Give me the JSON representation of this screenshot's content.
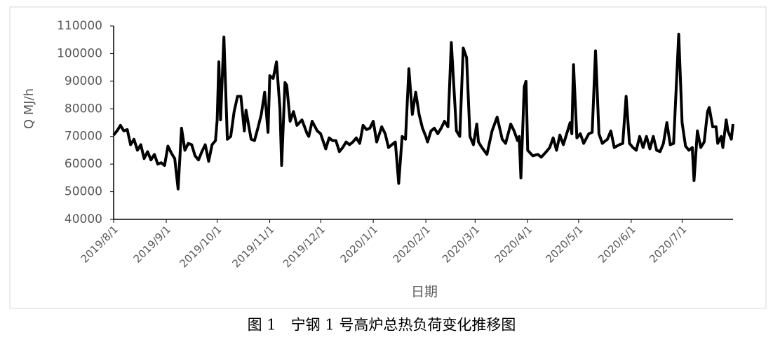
{
  "chart_data": {
    "type": "line",
    "y_label": "Q  MJ/h",
    "x_label": "日期",
    "caption": "图 1　宁钢 1 号高炉总热负荷变化推移图",
    "color": "#000000",
    "grid": false,
    "ylim": [
      40000,
      110000
    ],
    "yticks": [
      40000,
      50000,
      60000,
      70000,
      80000,
      90000,
      100000,
      110000
    ],
    "xlim": [
      "2019/8/1",
      "2020/7/31"
    ],
    "xticks": [
      "2019/8/1",
      "2019/9/1",
      "2019/10/1",
      "2019/11/1",
      "2019/12/1",
      "2020/1/1",
      "2020/2/1",
      "2020/3/1",
      "2020/4/1",
      "2020/5/1",
      "2020/6/1",
      "2020/7/1"
    ],
    "x": [
      "2019/8/1",
      "2019/8/3",
      "2019/8/5",
      "2019/8/7",
      "2019/8/9",
      "2019/8/11",
      "2019/8/13",
      "2019/8/15",
      "2019/8/17",
      "2019/8/19",
      "2019/8/21",
      "2019/8/23",
      "2019/8/25",
      "2019/8/27",
      "2019/8/29",
      "2019/8/31",
      "2019/9/2",
      "2019/9/4",
      "2019/9/6",
      "2019/9/8",
      "2019/9/10",
      "2019/9/12",
      "2019/9/14",
      "2019/9/16",
      "2019/9/18",
      "2019/9/20",
      "2019/9/22",
      "2019/9/24",
      "2019/9/26",
      "2019/9/28",
      "2019/9/30",
      "2019/10/1",
      "2019/10/2",
      "2019/10/3",
      "2019/10/5",
      "2019/10/7",
      "2019/10/9",
      "2019/10/11",
      "2019/10/13",
      "2019/10/15",
      "2019/10/17",
      "2019/10/18",
      "2019/10/21",
      "2019/10/23",
      "2019/10/25",
      "2019/10/27",
      "2019/10/29",
      "2019/10/31",
      "2019/11/1",
      "2019/11/3",
      "2019/11/5",
      "2019/11/7",
      "2019/11/8",
      "2019/11/10",
      "2019/11/11",
      "2019/11/13",
      "2019/11/15",
      "2019/11/17",
      "2019/11/20",
      "2019/11/23",
      "2019/11/24",
      "2019/11/26",
      "2019/11/29",
      "2019/12/1",
      "2019/12/4",
      "2019/12/6",
      "2019/12/8",
      "2019/12/10",
      "2019/12/12",
      "2019/12/14",
      "2019/12/16",
      "2019/12/18",
      "2019/12/20",
      "2019/12/22",
      "2019/12/24",
      "2019/12/26",
      "2019/12/28",
      "2019/12/30",
      "2020/1/1",
      "2020/1/3",
      "2020/1/6",
      "2020/1/8",
      "2020/1/10",
      "2020/1/12",
      "2020/1/14",
      "2020/1/16",
      "2020/1/18",
      "2020/1/20",
      "2020/1/22",
      "2020/1/24",
      "2020/1/26",
      "2020/1/28",
      "2020/1/30",
      "2020/2/1",
      "2020/2/2",
      "2020/2/4",
      "2020/2/6",
      "2020/2/8",
      "2020/2/10",
      "2020/2/12",
      "2020/2/14",
      "2020/2/16",
      "2020/2/19",
      "2020/2/21",
      "2020/2/23",
      "2020/2/25",
      "2020/2/27",
      "2020/2/29",
      "2020/3/2",
      "2020/3/3",
      "2020/3/5",
      "2020/3/8",
      "2020/3/11",
      "2020/3/14",
      "2020/3/17",
      "2020/3/19",
      "2020/3/22",
      "2020/3/24",
      "2020/3/26",
      "2020/3/27",
      "2020/3/28",
      "2020/3/30",
      "2020/3/31",
      "2020/4/1",
      "2020/4/4",
      "2020/4/7",
      "2020/4/9",
      "2020/4/12",
      "2020/4/14",
      "2020/4/16",
      "2020/4/18",
      "2020/4/20",
      "2020/4/22",
      "2020/4/24",
      "2020/4/26",
      "2020/4/27",
      "2020/4/28",
      "2020/4/30",
      "2020/5/2",
      "2020/5/4",
      "2020/5/7",
      "2020/5/9",
      "2020/5/11",
      "2020/5/13",
      "2020/5/15",
      "2020/5/18",
      "2020/5/20",
      "2020/5/22",
      "2020/5/25",
      "2020/5/27",
      "2020/5/29",
      "2020/5/31",
      "2020/6/2",
      "2020/6/4",
      "2020/6/6",
      "2020/6/8",
      "2020/6/10",
      "2020/6/12",
      "2020/6/14",
      "2020/6/16",
      "2020/6/18",
      "2020/6/20",
      "2020/6/22",
      "2020/6/24",
      "2020/6/26",
      "2020/6/29",
      "2020/7/1",
      "2020/7/3",
      "2020/7/5",
      "2020/7/7",
      "2020/7/8",
      "2020/7/10",
      "2020/7/12",
      "2020/7/14",
      "2020/7/16",
      "2020/7/17",
      "2020/7/19",
      "2020/7/21",
      "2020/7/22",
      "2020/7/24",
      "2020/7/25",
      "2020/7/27",
      "2020/7/28",
      "2020/7/30",
      "2020/7/31"
    ],
    "values": [
      70500,
      72000,
      74000,
      72000,
      72500,
      67000,
      69000,
      65000,
      67000,
      62000,
      64500,
      61500,
      63500,
      60000,
      60500,
      59500,
      66500,
      64000,
      62000,
      51000,
      73000,
      65000,
      67500,
      67000,
      63000,
      61500,
      64500,
      67000,
      61000,
      67000,
      68500,
      76000,
      97000,
      76000,
      106000,
      69000,
      70000,
      79000,
      84500,
      84500,
      72000,
      79500,
      69000,
      68500,
      73000,
      78000,
      86000,
      71500,
      92000,
      91000,
      97000,
      80000,
      59500,
      89500,
      88500,
      75500,
      79000,
      74000,
      76000,
      71000,
      70000,
      75500,
      72000,
      71000,
      65500,
      69500,
      68500,
      68500,
      64500,
      66000,
      68000,
      67000,
      68000,
      69500,
      67500,
      74000,
      72500,
      73000,
      75500,
      68000,
      73500,
      71000,
      66000,
      67000,
      68000,
      53000,
      70000,
      69000,
      94500,
      78000,
      86000,
      78000,
      73000,
      70000,
      68000,
      72000,
      73000,
      71000,
      73000,
      75500,
      73500,
      104000,
      72000,
      70000,
      102000,
      98500,
      70000,
      67000,
      74500,
      68000,
      66000,
      63500,
      72000,
      77000,
      69000,
      67500,
      74500,
      72000,
      68500,
      70000,
      55000,
      88000,
      90000,
      65000,
      63000,
      63500,
      62500,
      64500,
      66000,
      69500,
      65000,
      70500,
      67000,
      71000,
      75000,
      71000,
      96000,
      69500,
      71000,
      67500,
      71000,
      71500,
      101000,
      71000,
      67500,
      69000,
      72000,
      66000,
      67000,
      67500,
      84500,
      67500,
      66000,
      65000,
      70000,
      66000,
      70000,
      65500,
      70000,
      65000,
      64500,
      67500,
      75000,
      67000,
      67500,
      107000,
      75000,
      66500,
      65000,
      66000,
      54000,
      72000,
      66000,
      68000,
      79000,
      80500,
      73500,
      73500,
      67500,
      70000,
      66000,
      76000,
      72000,
      69000,
      74500
    ]
  }
}
